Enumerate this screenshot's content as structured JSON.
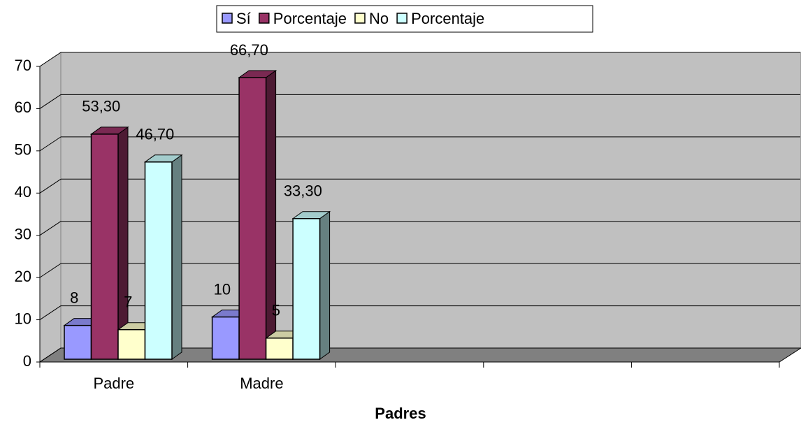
{
  "chart_data": {
    "type": "bar3d",
    "categories": [
      "Padre",
      "Madre",
      null,
      null,
      null
    ],
    "series": [
      {
        "name": "Sí",
        "color": "#9999ff",
        "values": [
          8,
          10,
          null,
          null,
          null
        ],
        "value_labels": [
          "8",
          "10",
          null,
          null,
          null
        ]
      },
      {
        "name": "Porcentaje",
        "color": "#993366",
        "values": [
          53.3,
          66.7,
          null,
          null,
          null
        ],
        "value_labels": [
          "53,30",
          "66,70",
          null,
          null,
          null
        ]
      },
      {
        "name": "No",
        "color": "#ffffcc",
        "values": [
          7,
          5,
          null,
          null,
          null
        ],
        "value_labels": [
          "7",
          "5",
          null,
          null,
          null
        ]
      },
      {
        "name": "Porcentaje",
        "color": "#ccffff",
        "values": [
          46.7,
          33.3,
          null,
          null,
          null
        ],
        "value_labels": [
          "46,70",
          "33,30",
          null,
          null,
          null
        ]
      }
    ],
    "x_label": "Padres",
    "ylim": [
      0,
      70
    ],
    "yticks": [
      0,
      10,
      20,
      30,
      40,
      50,
      60,
      70
    ],
    "grid": true,
    "legend": "top"
  }
}
